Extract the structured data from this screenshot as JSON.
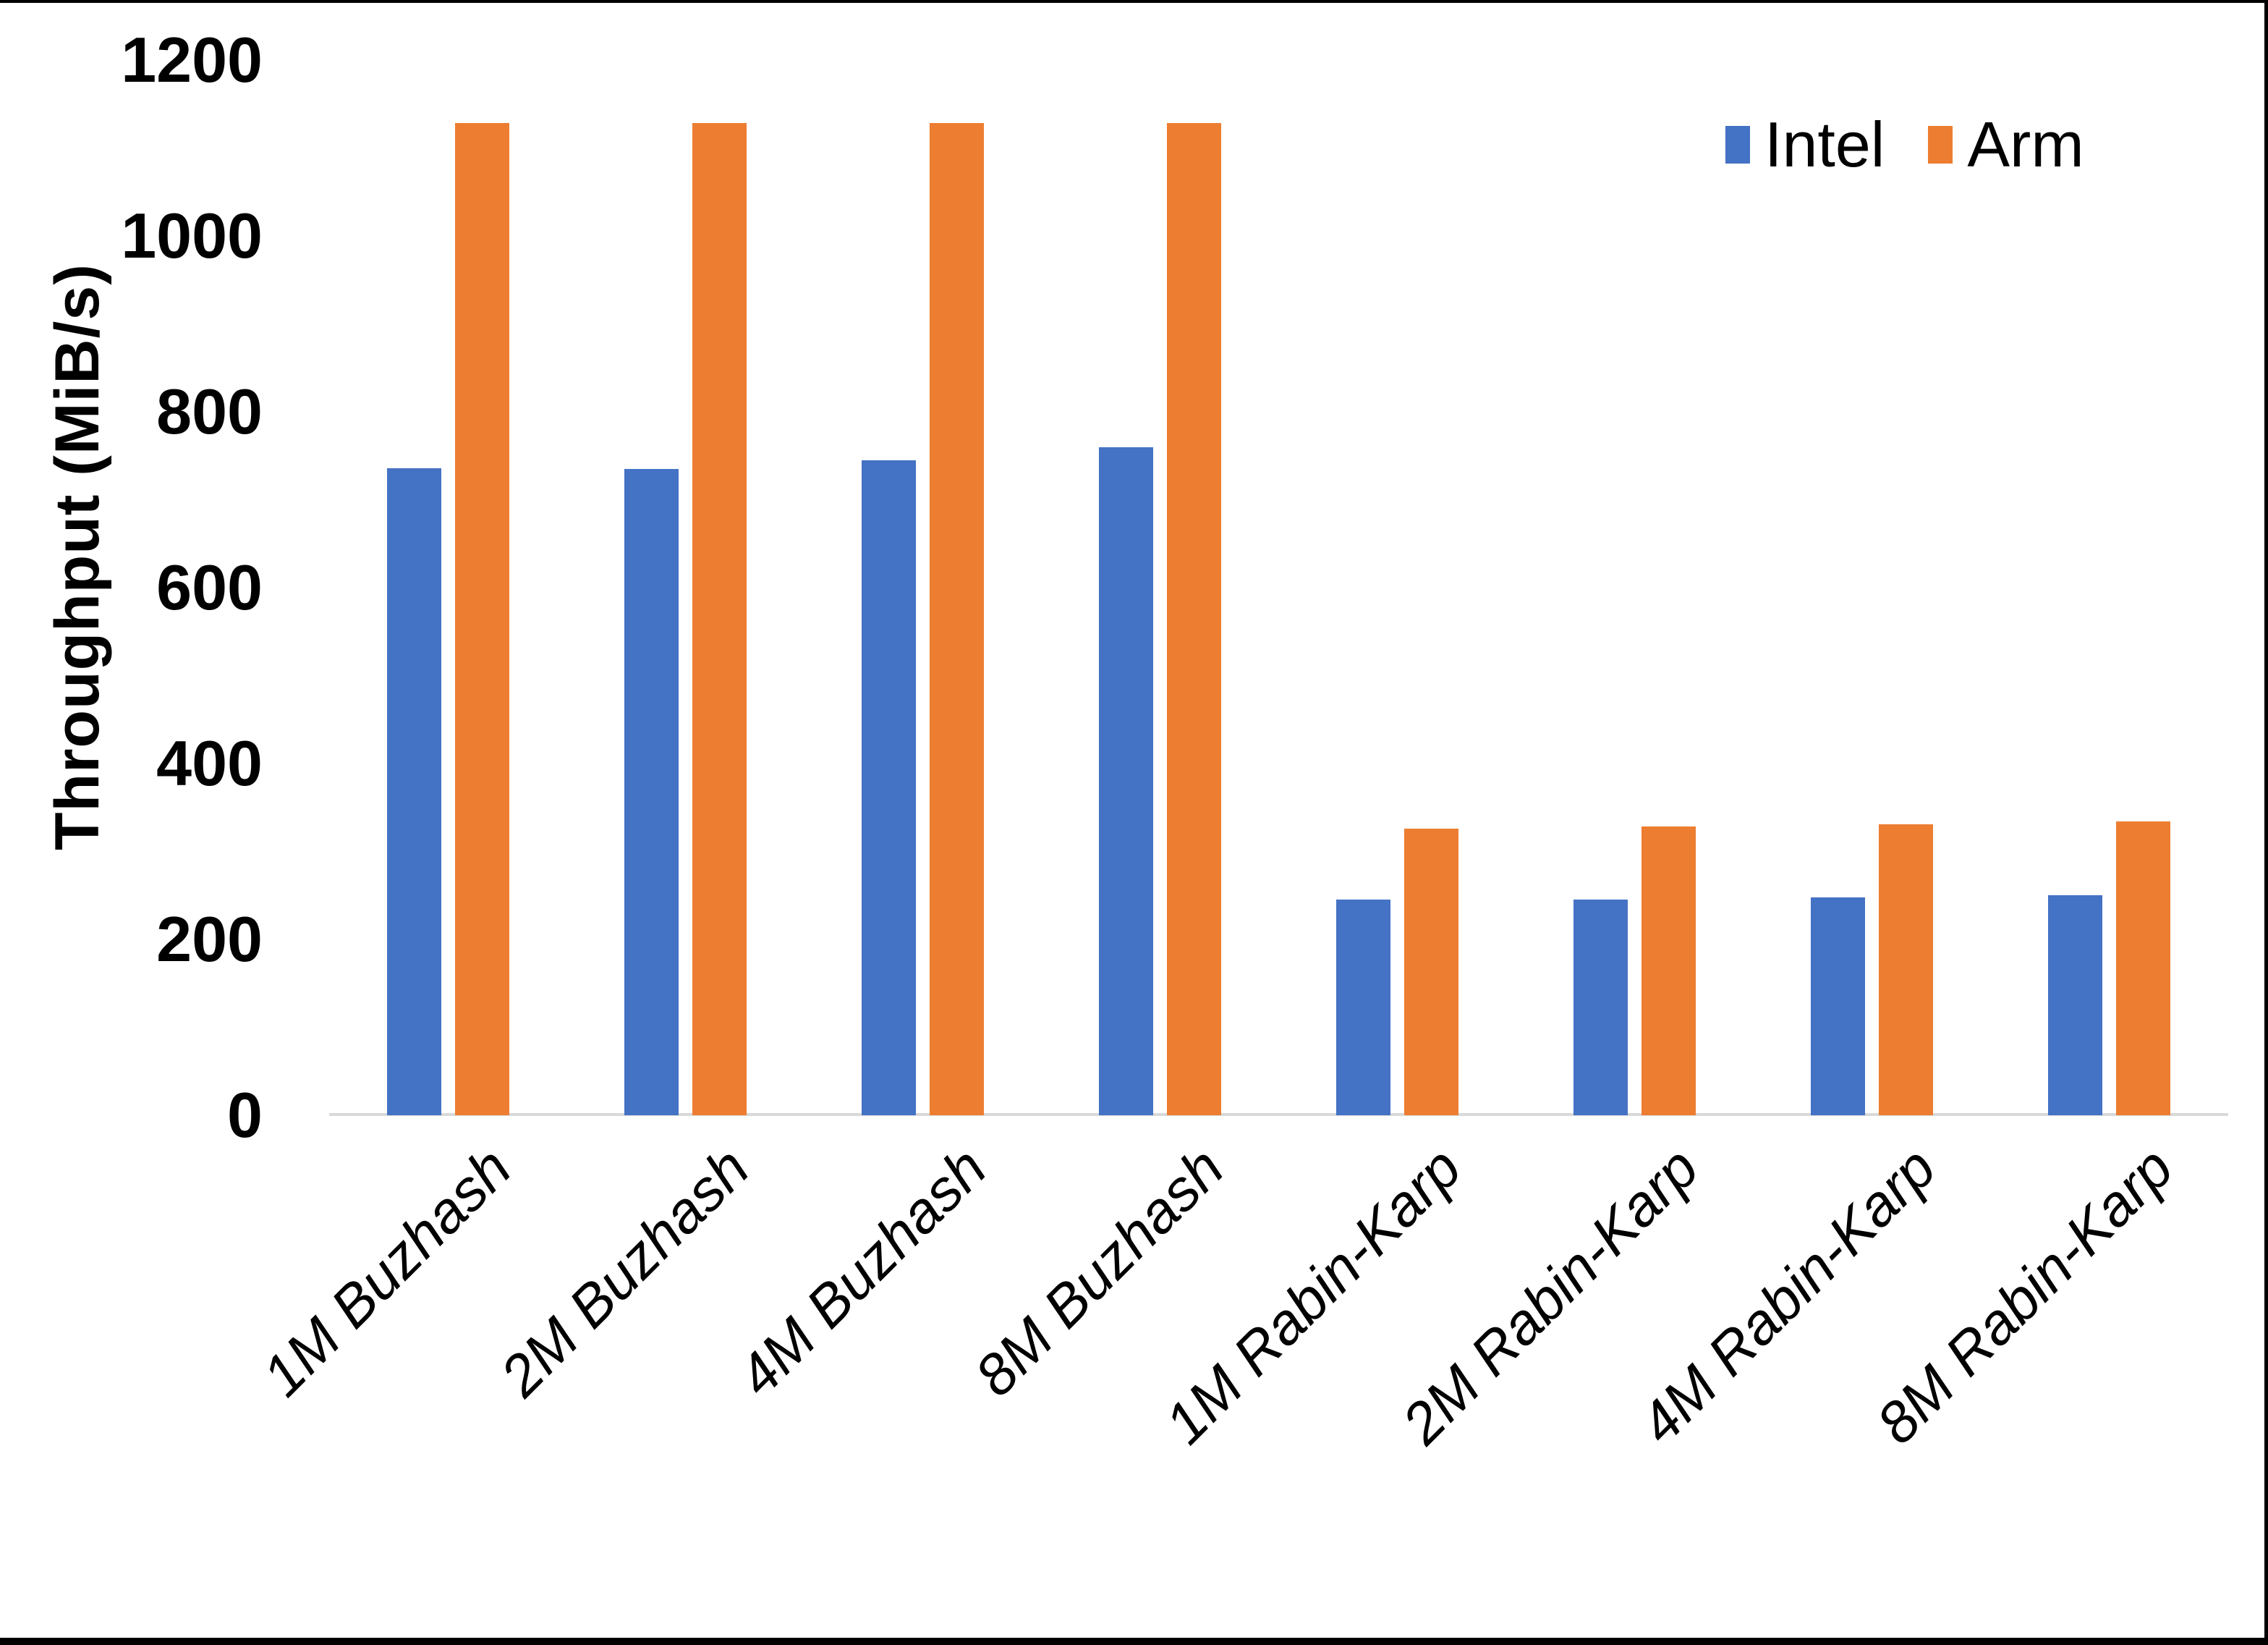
{
  "window": {
    "background": "#ffffff",
    "border_color": "#000000"
  },
  "chart_data": {
    "type": "bar",
    "title": "",
    "xlabel": "",
    "ylabel": "Throughput (MiB/s)",
    "ylim": [
      0,
      1200
    ],
    "yticks": [
      0,
      200,
      400,
      600,
      800,
      1000,
      1200
    ],
    "grid": false,
    "legend_position": "top-right",
    "axis_line_color": "#D9D9D9",
    "text_color": "#000000",
    "categories": [
      "1M Buzhash",
      "2M Buzhash",
      "4M Buzhash",
      "8M Buzhash",
      "1M Rabin-Karp",
      "2M Rabin-Karp",
      "4M Rabin-Karp",
      "8M Rabin-Karp"
    ],
    "series": [
      {
        "name": "Intel",
        "color": "#4472C4",
        "values": [
          736,
          735,
          745,
          760,
          245,
          245,
          248,
          250
        ]
      },
      {
        "name": "Arm",
        "color": "#ED7D31",
        "values": [
          1128,
          1128,
          1128,
          1128,
          326,
          328,
          331,
          334
        ]
      }
    ]
  }
}
